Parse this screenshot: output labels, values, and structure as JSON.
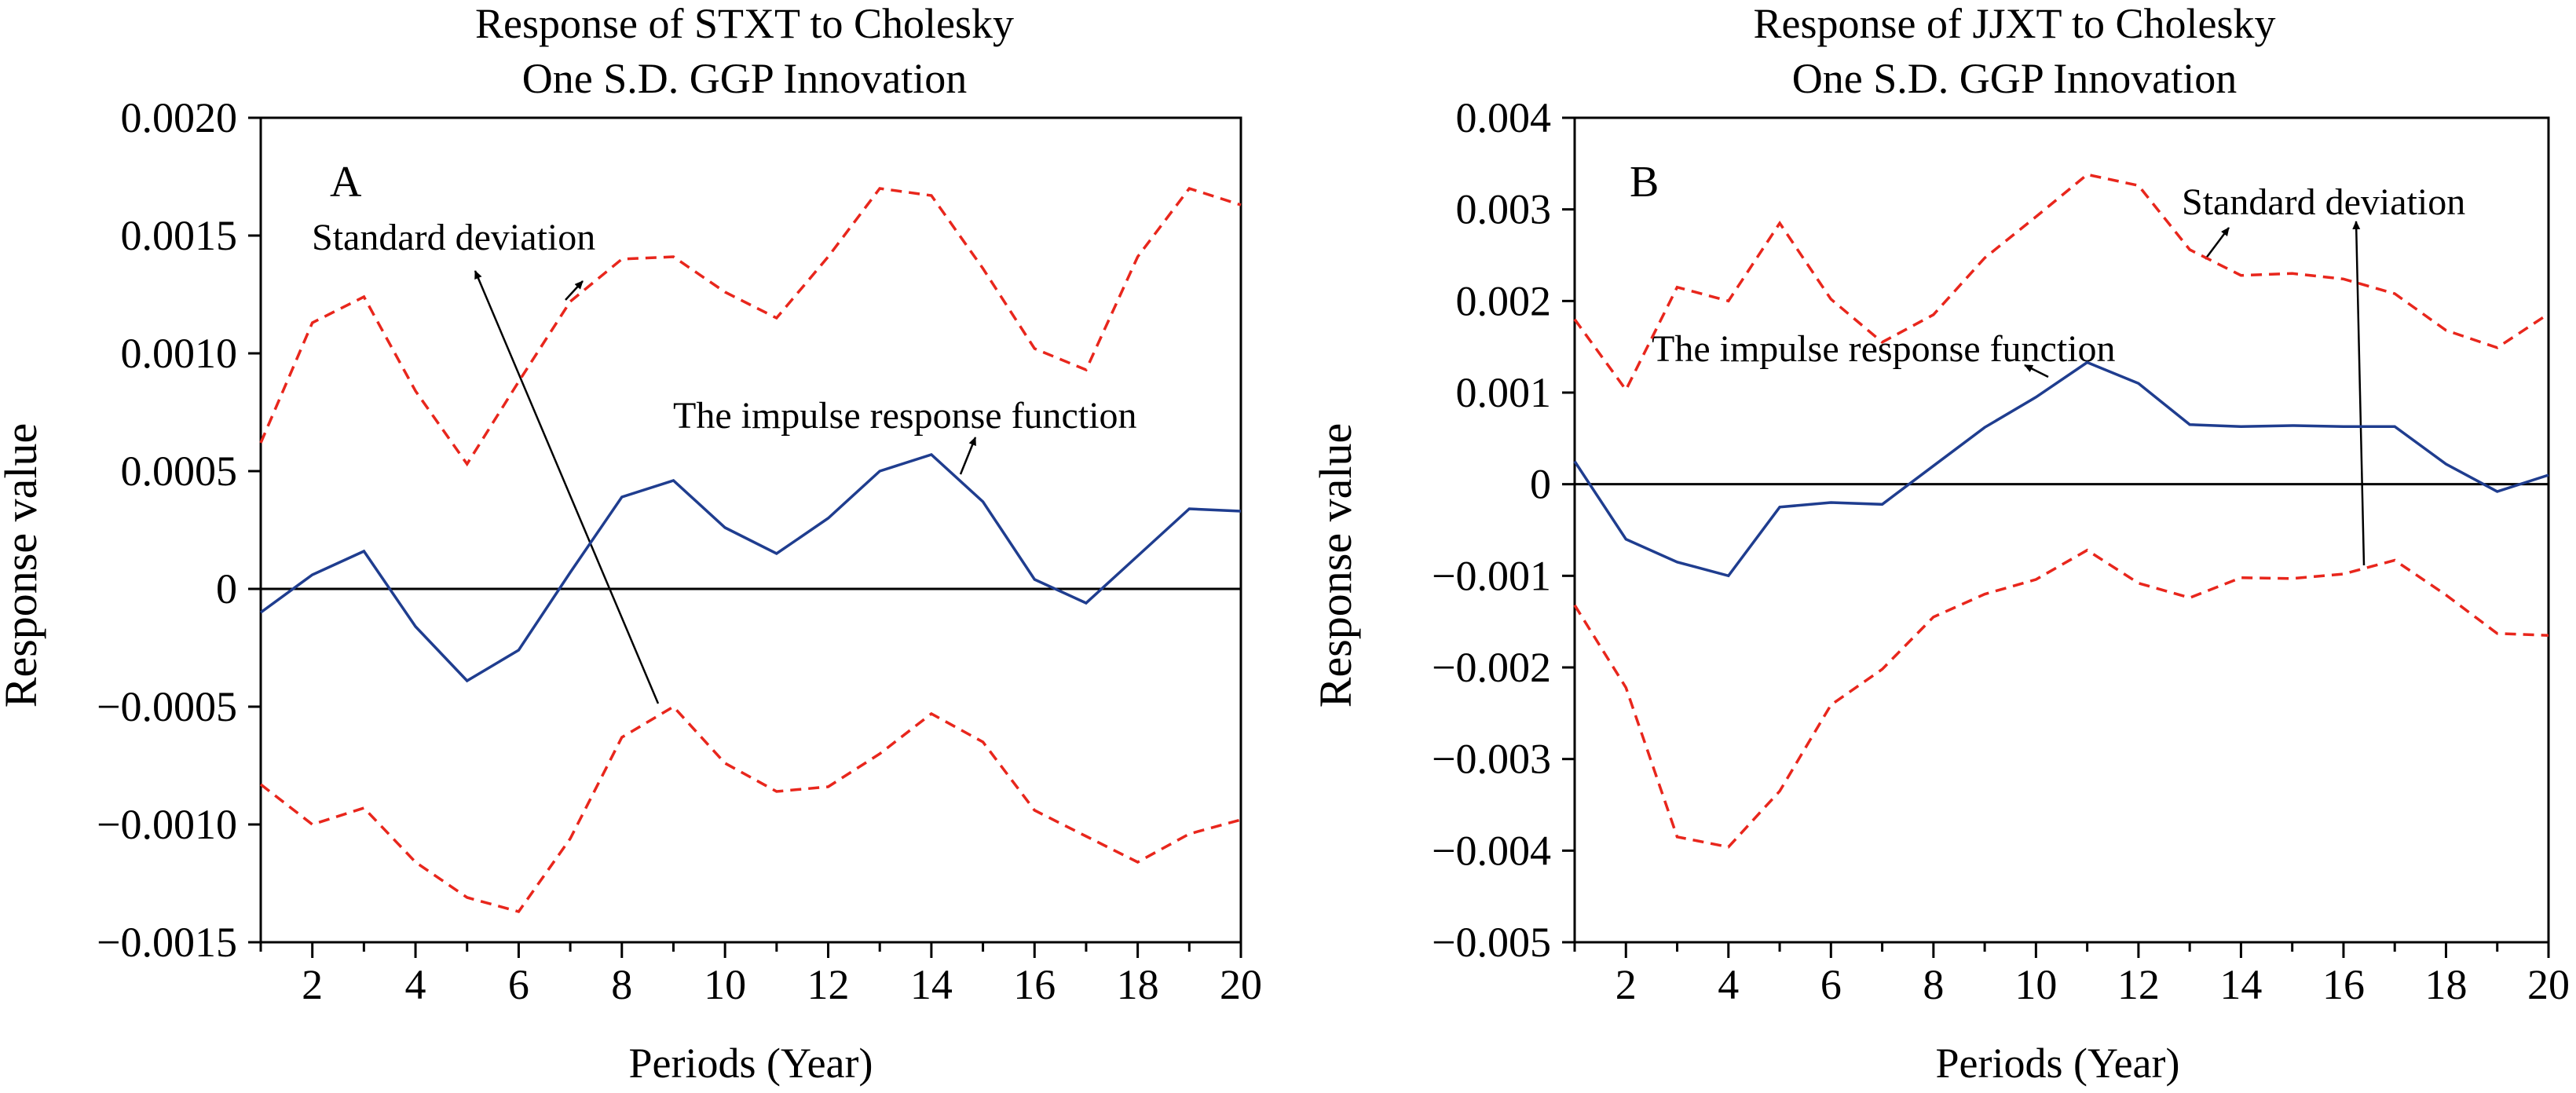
{
  "colors": {
    "irf": "#1f3d8f",
    "band": "#e8261c",
    "axis": "#000000",
    "zero_line": "#000000"
  },
  "chart_data": [
    {
      "type": "line",
      "panel_label": "A",
      "title": [
        "Response of STXT to Cholesky",
        "One S.D. GGP Innovation"
      ],
      "xlabel": "Periods (Year)",
      "ylabel": "Response value",
      "xlim": [
        1,
        20
      ],
      "ylim": [
        -0.0015,
        0.002
      ],
      "xticks": [
        2,
        4,
        6,
        8,
        10,
        12,
        14,
        16,
        18,
        20
      ],
      "yticks": [
        -0.0015,
        -0.001,
        -0.0005,
        0,
        0.0005,
        0.001,
        0.0015,
        0.002
      ],
      "ytick_labels": [
        "−0.0015",
        "−0.0010",
        "−0.0005",
        "0",
        "0.0005",
        "0.0010",
        "0.0015",
        "0.0020"
      ],
      "x": [
        1,
        2,
        3,
        4,
        5,
        6,
        7,
        8,
        9,
        10,
        11,
        12,
        13,
        14,
        15,
        16,
        17,
        18,
        19,
        20
      ],
      "series": [
        {
          "role": "irf",
          "values": [
            -0.0001,
            6e-05,
            0.00016,
            -0.00016,
            -0.00039,
            -0.00026,
            7e-05,
            0.00039,
            0.00046,
            0.00026,
            0.00015,
            0.0003,
            0.0005,
            0.00057,
            0.00037,
            4e-05,
            -6e-05,
            0.00014,
            0.00034,
            0.00033
          ]
        },
        {
          "role": "upper",
          "values": [
            0.00062,
            0.00113,
            0.00124,
            0.00084,
            0.00053,
            0.00088,
            0.00122,
            0.0014,
            0.00141,
            0.00126,
            0.00115,
            0.00141,
            0.0017,
            0.00167,
            0.00136,
            0.00102,
            0.00093,
            0.00141,
            0.0017,
            0.00163
          ]
        },
        {
          "role": "lower",
          "values": [
            -0.00083,
            -0.001,
            -0.00093,
            -0.00116,
            -0.00131,
            -0.00137,
            -0.00106,
            -0.00063,
            -0.0005,
            -0.00074,
            -0.00086,
            -0.00084,
            -0.0007,
            -0.00053,
            -0.00065,
            -0.00094,
            -0.00105,
            -0.00116,
            -0.00104,
            -0.00098
          ]
        }
      ],
      "annotations": [
        {
          "text": "Standard deviation"
        },
        {
          "text": "The impulse response function"
        }
      ]
    },
    {
      "type": "line",
      "panel_label": "B",
      "title": [
        "Response of JJXT to Cholesky",
        "One S.D. GGP Innovation"
      ],
      "xlabel": "Periods (Year)",
      "ylabel": "Response value",
      "xlim": [
        1,
        20
      ],
      "ylim": [
        -0.005,
        0.004
      ],
      "xticks": [
        2,
        4,
        6,
        8,
        10,
        12,
        14,
        16,
        18,
        20
      ],
      "yticks": [
        -0.005,
        -0.004,
        -0.003,
        -0.002,
        -0.001,
        0,
        0.001,
        0.002,
        0.003,
        0.004
      ],
      "ytick_labels": [
        "−0.005",
        "−0.004",
        "−0.003",
        "−0.002",
        "−0.001",
        "0",
        "0.001",
        "0.002",
        "0.003",
        "0.004"
      ],
      "x": [
        1,
        2,
        3,
        4,
        5,
        6,
        7,
        8,
        9,
        10,
        11,
        12,
        13,
        14,
        15,
        16,
        17,
        18,
        19,
        20
      ],
      "series": [
        {
          "role": "irf",
          "values": [
            0.00025,
            -0.0006,
            -0.00085,
            -0.001,
            -0.00025,
            -0.0002,
            -0.00022,
            0.0002,
            0.00062,
            0.00095,
            0.00133,
            0.0011,
            0.00065,
            0.00063,
            0.00064,
            0.00063,
            0.00063,
            0.00022,
            -8e-05,
            0.0001
          ]
        },
        {
          "role": "upper",
          "values": [
            0.0018,
            0.00103,
            0.00215,
            0.002,
            0.00285,
            0.00202,
            0.00155,
            0.00185,
            0.00247,
            0.00292,
            0.00338,
            0.00326,
            0.00256,
            0.00228,
            0.0023,
            0.00224,
            0.00208,
            0.00168,
            0.00149,
            0.00186
          ]
        },
        {
          "role": "lower",
          "values": [
            -0.00132,
            -0.00222,
            -0.00385,
            -0.00396,
            -0.00335,
            -0.00241,
            -0.00202,
            -0.00145,
            -0.0012,
            -0.00104,
            -0.00072,
            -0.00108,
            -0.00124,
            -0.00102,
            -0.00103,
            -0.00098,
            -0.00083,
            -0.00121,
            -0.00163,
            -0.00165
          ]
        }
      ],
      "annotations": [
        {
          "text": "Standard deviation"
        },
        {
          "text": "The impulse response function"
        }
      ]
    }
  ]
}
